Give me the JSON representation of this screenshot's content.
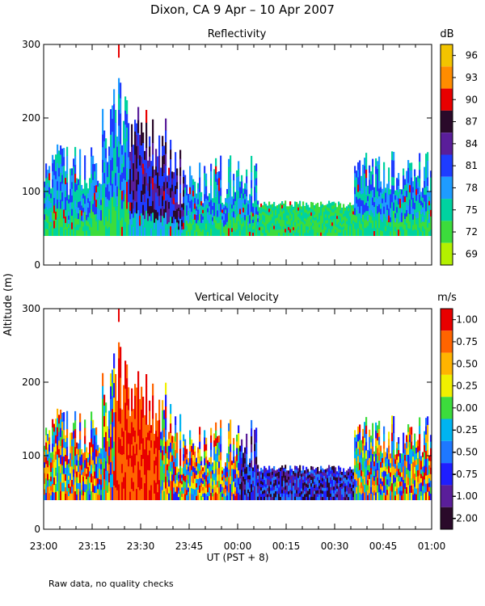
{
  "title": "Dixon, CA  9 Apr – 10 Apr 2007",
  "ylabel": "Altitude (m)",
  "xlabel": "UT  (PST + 8)",
  "footnote": "Raw data, no quality checks",
  "x_ticks": [
    "23:00",
    "23:15",
    "23:30",
    "23:45",
    "00:00",
    "00:15",
    "00:30",
    "00:45",
    "01:00"
  ],
  "y_ticks": [
    "0",
    "100",
    "200",
    "300"
  ],
  "chart_data": [
    {
      "type": "heatmap",
      "title": "Reflectivity",
      "colorbar_unit": "dB",
      "colorbar_ticks": [
        "96",
        "93",
        "90",
        "87",
        "84",
        "81",
        "78",
        "75",
        "72",
        "69"
      ],
      "colorbar_colors": [
        "#f2c400",
        "#ff8c00",
        "#e80000",
        "#2a0a2a",
        "#5a1e9a",
        "#1e3cff",
        "#1e9cff",
        "#00d2a0",
        "#3cdc3c",
        "#b4f000"
      ],
      "value_range": [
        69,
        97
      ],
      "ylim": [
        0,
        300
      ],
      "x_range": [
        "23:00",
        "01:00"
      ],
      "echo_base_altitude_m": 40
    },
    {
      "type": "heatmap",
      "title": "Vertical Velocity",
      "colorbar_unit": "m/s",
      "colorbar_ticks": [
        "1.00",
        "0.75",
        "0.50",
        "0.25",
        "0.00",
        "-0.25",
        "-0.50",
        "-0.75",
        "-1.00",
        "-2.00"
      ],
      "colorbar_colors": [
        "#e80000",
        "#ff6400",
        "#ffb400",
        "#f0f000",
        "#3cdc3c",
        "#00b4f0",
        "#1e78ff",
        "#1e1eff",
        "#5a1e9a",
        "#2a0a2a"
      ],
      "value_range": [
        -2.0,
        1.25
      ],
      "ylim": [
        0,
        300
      ],
      "x_range": [
        "23:00",
        "01:00"
      ],
      "echo_base_altitude_m": 40
    }
  ]
}
